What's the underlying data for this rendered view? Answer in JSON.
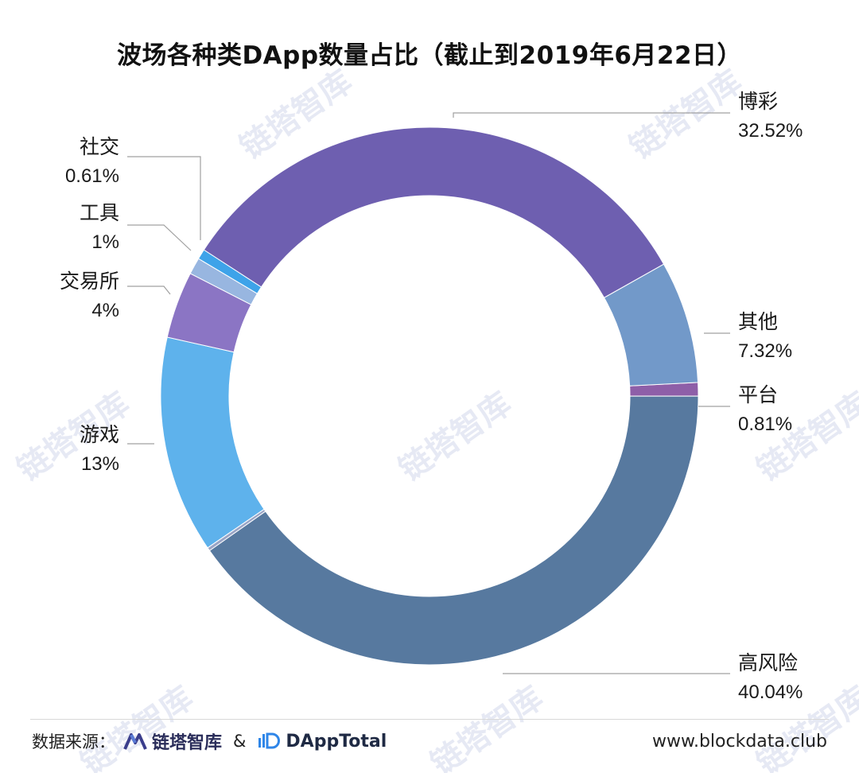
{
  "title": "波场各种类DApp数量占比（截止到2019年6月22日）",
  "chart_data": {
    "type": "pie",
    "variant": "donut",
    "start_angle_deg": 0,
    "direction": "clockwise",
    "slices": [
      {
        "label": "平台",
        "value_text": "0.81%",
        "value": 0.81,
        "color": "#8e5fa8"
      },
      {
        "label": "高风险",
        "value_text": "40.04%",
        "value": 40.04,
        "color": "#57799f"
      },
      {
        "label": "",
        "value_text": "",
        "value": 0.2,
        "color": "#9aa5c6"
      },
      {
        "label": "游戏",
        "value_text": "13%",
        "value": 13.0,
        "color": "#5eb2ec"
      },
      {
        "label": "交易所",
        "value_text": "4%",
        "value": 4.0,
        "color": "#8b75c4"
      },
      {
        "label": "工具",
        "value_text": "1%",
        "value": 1.0,
        "color": "#98b6e0"
      },
      {
        "label": "社交",
        "value_text": "0.61%",
        "value": 0.61,
        "color": "#3ea3e9"
      },
      {
        "label": "博彩",
        "value_text": "32.52%",
        "value": 32.52,
        "color": "#6e5fb0"
      },
      {
        "label": "其他",
        "value_text": "7.32%",
        "value": 7.32,
        "color": "#7299c9"
      }
    ],
    "legend": "none"
  },
  "watermark": {
    "text": "链塔智库"
  },
  "footer": {
    "source_label": "数据来源：",
    "brand1": "链塔智库",
    "amp": "&",
    "brand2": "DAppTotal",
    "website": "www.blockdata.club"
  },
  "colors": {
    "leader_line": "#a0a0a0",
    "label_text": "#1a1a1a"
  }
}
